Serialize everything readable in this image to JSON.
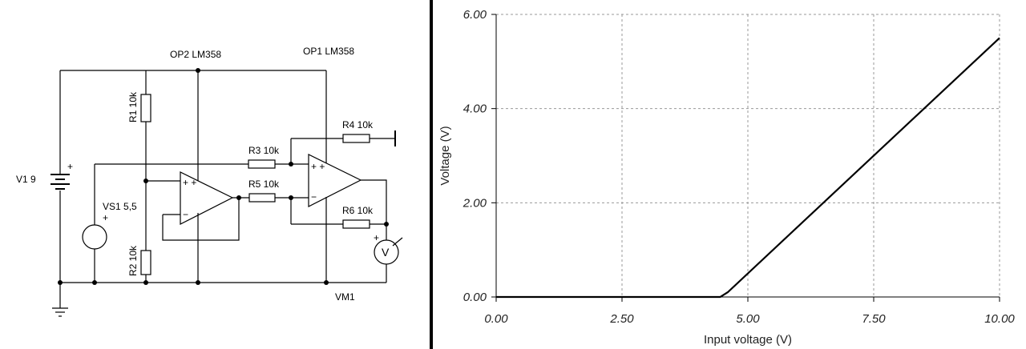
{
  "circuit": {
    "labels": [
      "OP2 LM358",
      "OP1 LM358",
      "R1 10k",
      "R2 10k",
      "R3 10k",
      "R4 10k",
      "R5 10k",
      "R6 10k",
      "V1 9",
      "VS1 5,5",
      "VM1"
    ]
  },
  "chart_data": {
    "type": "line",
    "x_label": "Input voltage (V)",
    "y_label": "Voltage (V)",
    "x": [
      0,
      4.45,
      4.6,
      10
    ],
    "series": [
      {
        "color": "#000000",
        "values": [
          0,
          0,
          0.1,
          5.5
        ]
      }
    ],
    "xlim": [
      0,
      10
    ],
    "ylim": [
      0,
      6
    ],
    "xticks": [
      {
        "value": 0,
        "label": "0.00"
      },
      {
        "value": 2.5,
        "label": "2.50"
      },
      {
        "value": 5,
        "label": "5.00"
      },
      {
        "value": 7.5,
        "label": "7.50"
      },
      {
        "value": 10,
        "label": "10.00"
      }
    ],
    "yticks": [
      {
        "value": 0,
        "label": "0.00"
      },
      {
        "value": 2,
        "label": "2.00"
      },
      {
        "value": 4,
        "label": "4.00"
      },
      {
        "value": 6,
        "label": "6.00"
      }
    ],
    "grid": true
  }
}
